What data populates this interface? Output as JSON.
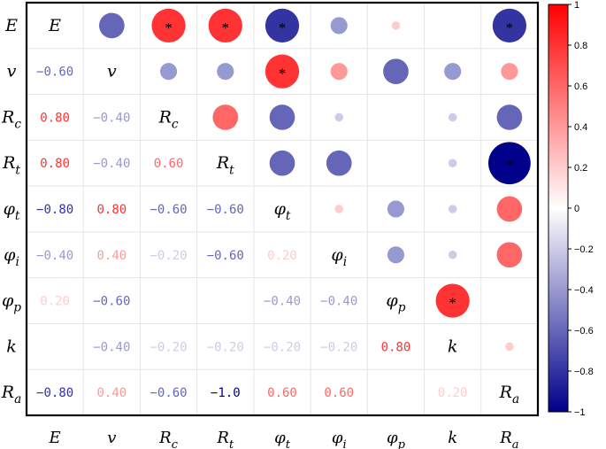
{
  "chart_data": {
    "type": "correlation-matrix",
    "variables": [
      {
        "base": "E",
        "sub": ""
      },
      {
        "base": "v",
        "sub": ""
      },
      {
        "base": "R",
        "sub": "c"
      },
      {
        "base": "R",
        "sub": "t"
      },
      {
        "base": "φ",
        "sub": "t"
      },
      {
        "base": "φ",
        "sub": "i"
      },
      {
        "base": "φ",
        "sub": "p"
      },
      {
        "base": "k",
        "sub": ""
      },
      {
        "base": "R",
        "sub": "a"
      }
    ],
    "matrix": [
      [
        1.0,
        -0.6,
        0.8,
        0.8,
        -0.8,
        -0.4,
        0.2,
        0.0,
        -0.8
      ],
      [
        -0.6,
        1.0,
        -0.4,
        -0.4,
        0.8,
        0.4,
        -0.6,
        -0.4,
        0.4
      ],
      [
        0.8,
        -0.4,
        1.0,
        0.6,
        -0.6,
        -0.2,
        0.0,
        -0.2,
        -0.6
      ],
      [
        0.8,
        -0.4,
        0.6,
        1.0,
        -0.6,
        -0.6,
        0.0,
        -0.2,
        -1.0
      ],
      [
        -0.8,
        0.8,
        -0.6,
        -0.6,
        1.0,
        0.2,
        -0.4,
        -0.2,
        0.6
      ],
      [
        -0.4,
        0.4,
        -0.2,
        -0.6,
        0.2,
        1.0,
        -0.4,
        -0.2,
        0.6
      ],
      [
        0.2,
        -0.6,
        0.0,
        0.0,
        -0.4,
        -0.4,
        1.0,
        0.8,
        0.0
      ],
      [
        0.0,
        -0.4,
        -0.2,
        -0.2,
        -0.2,
        -0.2,
        0.8,
        1.0,
        0.2
      ],
      [
        -0.8,
        0.4,
        -0.6,
        -1.0,
        0.6,
        0.6,
        0.0,
        0.2,
        1.0
      ]
    ],
    "lower_labels": [
      [],
      [
        "−0.60"
      ],
      [
        "0.80",
        "−0.40"
      ],
      [
        "0.80",
        "−0.40",
        "0.60"
      ],
      [
        "−0.80",
        "0.80",
        "−0.60",
        "−0.60"
      ],
      [
        "−0.40",
        "0.40",
        "−0.20",
        "−0.60",
        "0.20"
      ],
      [
        "0.20",
        "−0.60",
        "",
        "",
        "−0.40",
        "−0.40"
      ],
      [
        "",
        "−0.40",
        "−0.20",
        "−0.20",
        "−0.20",
        "−0.20",
        "0.80"
      ],
      [
        "−0.80",
        "0.40",
        "−0.60",
        "−1.0",
        "0.60",
        "0.60",
        "",
        "0.20"
      ]
    ],
    "significant": [
      [
        0,
        2
      ],
      [
        0,
        3
      ],
      [
        0,
        4
      ],
      [
        0,
        8
      ],
      [
        1,
        4
      ],
      [
        3,
        8
      ],
      [
        6,
        7
      ]
    ],
    "significance_marker": "*",
    "colorbar": {
      "min": -1,
      "max": 1,
      "ticks": [
        "1",
        "0.8",
        "0.6",
        "0.4",
        "0.2",
        "0",
        "−0.2",
        "−0.4",
        "−0.6",
        "−0.8",
        "−1"
      ],
      "tick_values": [
        1,
        0.8,
        0.6,
        0.4,
        0.2,
        0,
        -0.2,
        -0.4,
        -0.6,
        -0.8,
        -1
      ],
      "placement": "right",
      "colors": {
        "positive": "#ff0000",
        "zero": "#ffffff",
        "negative": "#00008b"
      }
    },
    "bottom_labels": [
      {
        "base": "E",
        "sub": ""
      },
      {
        "base": "v",
        "sub": ""
      },
      {
        "base": "R",
        "sub": "c"
      },
      {
        "base": "R",
        "sub": "t"
      },
      {
        "base": "φ",
        "sub": "t"
      },
      {
        "base": "φ",
        "sub": "i"
      },
      {
        "base": "φ",
        "sub": "p"
      },
      {
        "base": "k",
        "sub": ""
      },
      {
        "base": "R",
        "sub": "a"
      }
    ],
    "grid": true,
    "title": "",
    "xlabel": "",
    "ylabel": ""
  }
}
